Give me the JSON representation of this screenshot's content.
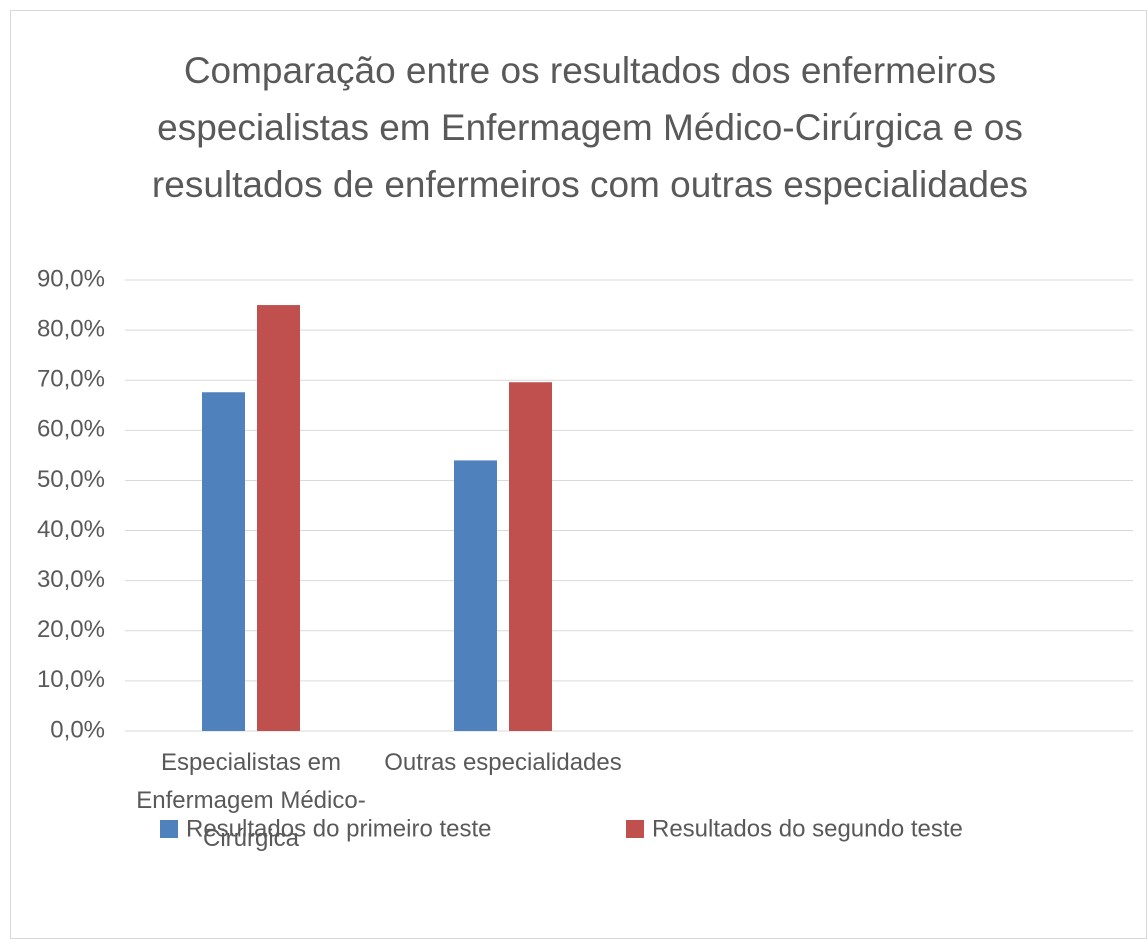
{
  "chart_data": {
    "type": "bar",
    "title": "Comparação entre os resultados dos enfermeiros especialistas em Enfermagem Médico-Cirúrgica e os resultados de enfermeiros com outras especialidades",
    "categories": [
      "Especialistas em Enfermagem Médico-Cirúrgica",
      "Outras especialidades",
      null,
      null
    ],
    "series": [
      {
        "name": "Resultados do primeiro teste",
        "color": "#4f81bd",
        "values": [
          67.6,
          54.0,
          null,
          null
        ]
      },
      {
        "name": "Resultados do segundo teste",
        "color": "#c0504d",
        "values": [
          85.0,
          69.6,
          null,
          null
        ]
      }
    ],
    "ylim": [
      0,
      90
    ],
    "yticks": [
      {
        "value": 0,
        "label": "0,0%"
      },
      {
        "value": 10,
        "label": "10,0%"
      },
      {
        "value": 20,
        "label": "20,0%"
      },
      {
        "value": 30,
        "label": "30,0%"
      },
      {
        "value": 40,
        "label": "40,0%"
      },
      {
        "value": 50,
        "label": "50,0%"
      },
      {
        "value": 60,
        "label": "60,0%"
      },
      {
        "value": 70,
        "label": "70,0%"
      },
      {
        "value": 80,
        "label": "80,0%"
      },
      {
        "value": 90,
        "label": "90,0%"
      }
    ],
    "grid": true,
    "legend": "bottom"
  }
}
